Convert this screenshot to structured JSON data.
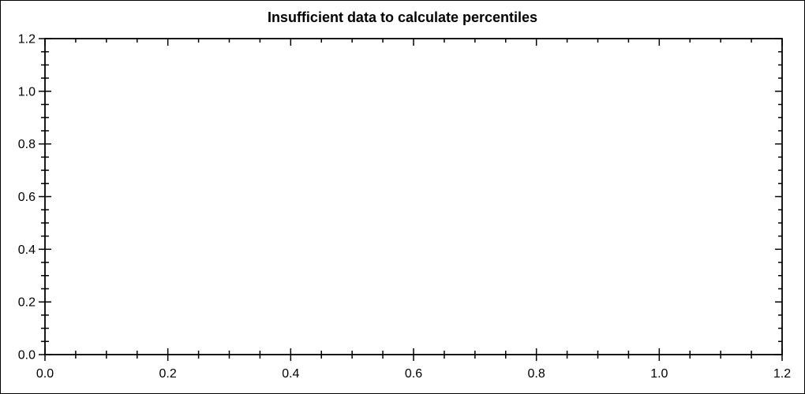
{
  "figure": {
    "background_color": "#ffffff",
    "border_color": "#000000",
    "axis_color": "#000000",
    "text_color": "#000000"
  },
  "chart_data": {
    "type": "line",
    "title": "Insufficient data to calculate percentiles",
    "xlabel": "",
    "ylabel": "",
    "xlim": [
      0,
      1.2
    ],
    "ylim": [
      0,
      1.2
    ],
    "x_major_ticks": [
      0,
      0.2,
      0.4,
      0.6,
      0.8,
      1.0,
      1.2
    ],
    "y_major_ticks": [
      0,
      0.2,
      0.4,
      0.6,
      0.8,
      1.0,
      1.2
    ],
    "x_tick_labels": [
      "0.0",
      "0.2",
      "0.4",
      "0.6",
      "0.8",
      "1.0",
      "1.2"
    ],
    "y_tick_labels": [
      "0.0",
      "0.2",
      "0.4",
      "0.6",
      "0.8",
      "1.0",
      "1.2"
    ],
    "minor_tick_interval": 0.05,
    "grid": false,
    "legend_position": "none",
    "series": []
  }
}
